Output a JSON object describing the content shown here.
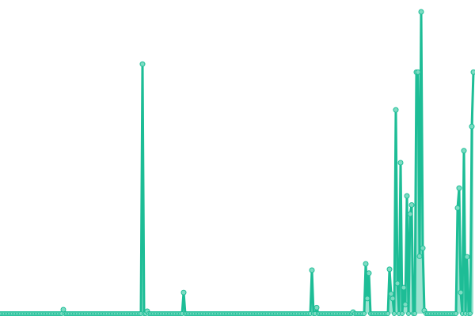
{
  "chart_data": {
    "type": "line",
    "title": "",
    "xlabel": "",
    "ylabel": "",
    "axes_visible": false,
    "grid": false,
    "legend": "none",
    "ylim": [
      0,
      100
    ],
    "colors": {
      "line": "#1dbd96",
      "marker_fill": "#7ddcc3",
      "area": "#8fe0cb"
    },
    "values": [
      0,
      0,
      0,
      0,
      0,
      0,
      0,
      0,
      0,
      0,
      0,
      0,
      0,
      0,
      0,
      0,
      0,
      0,
      0,
      0,
      0,
      0,
      0,
      0,
      0,
      0,
      0,
      0,
      0,
      0,
      0,
      0,
      0,
      0,
      0,
      0,
      0,
      0,
      0,
      0,
      1.3,
      0,
      0,
      0,
      0,
      0,
      0,
      0,
      0,
      0,
      0,
      0,
      0,
      0,
      0,
      0,
      0,
      0,
      0,
      0,
      0,
      0,
      0,
      0,
      0,
      0,
      0,
      0,
      0,
      0,
      0,
      0,
      0,
      0,
      0,
      0,
      0,
      0,
      0,
      0,
      0,
      0,
      0,
      0,
      0,
      0,
      0,
      0,
      0,
      0,
      82.7,
      0,
      0,
      0.8,
      0,
      0,
      0,
      0,
      0,
      0,
      0,
      0,
      0,
      0,
      0,
      0,
      0,
      0,
      0,
      0,
      0,
      0,
      0,
      0,
      0,
      0,
      7,
      0,
      0,
      0,
      0,
      0,
      0,
      0,
      0,
      0,
      0,
      0,
      0,
      0,
      0,
      0,
      0,
      0,
      0,
      0,
      0,
      0,
      0,
      0,
      0,
      0,
      0,
      0,
      0,
      0,
      0,
      0,
      0,
      0,
      0,
      0,
      0,
      0,
      0,
      0,
      0,
      0,
      0,
      0,
      0,
      0,
      0,
      0,
      0,
      0,
      0,
      0,
      0,
      0,
      0,
      0,
      0,
      0,
      0,
      0,
      0,
      0,
      0,
      0,
      0,
      0,
      0,
      0,
      0,
      0,
      0,
      0,
      0,
      0,
      0,
      0,
      0,
      0,
      0,
      0,
      0,
      14.4,
      0,
      0,
      2,
      0,
      0,
      0,
      0,
      0,
      0,
      0,
      0,
      0,
      0,
      0,
      0,
      0,
      0,
      0,
      0,
      0,
      0,
      0,
      0,
      0,
      0,
      0.5,
      0,
      0,
      0,
      0,
      0,
      0,
      0,
      16.5,
      5,
      13.4,
      0,
      0,
      0,
      0,
      0,
      0,
      0,
      0,
      0,
      0,
      0,
      0,
      14.7,
      6.5,
      5,
      0,
      67.5,
      10,
      0,
      50,
      0,
      8.6,
      3,
      39,
      0,
      33,
      36,
      0,
      0,
      80,
      80,
      19,
      100,
      21.7,
      1,
      0,
      0,
      0,
      0,
      0,
      0,
      0,
      0,
      0,
      0,
      0,
      0,
      0,
      0,
      0,
      0,
      0,
      0,
      0,
      0,
      35,
      41.6,
      7,
      0,
      54,
      0,
      18.8,
      0,
      0,
      62,
      80
    ]
  }
}
